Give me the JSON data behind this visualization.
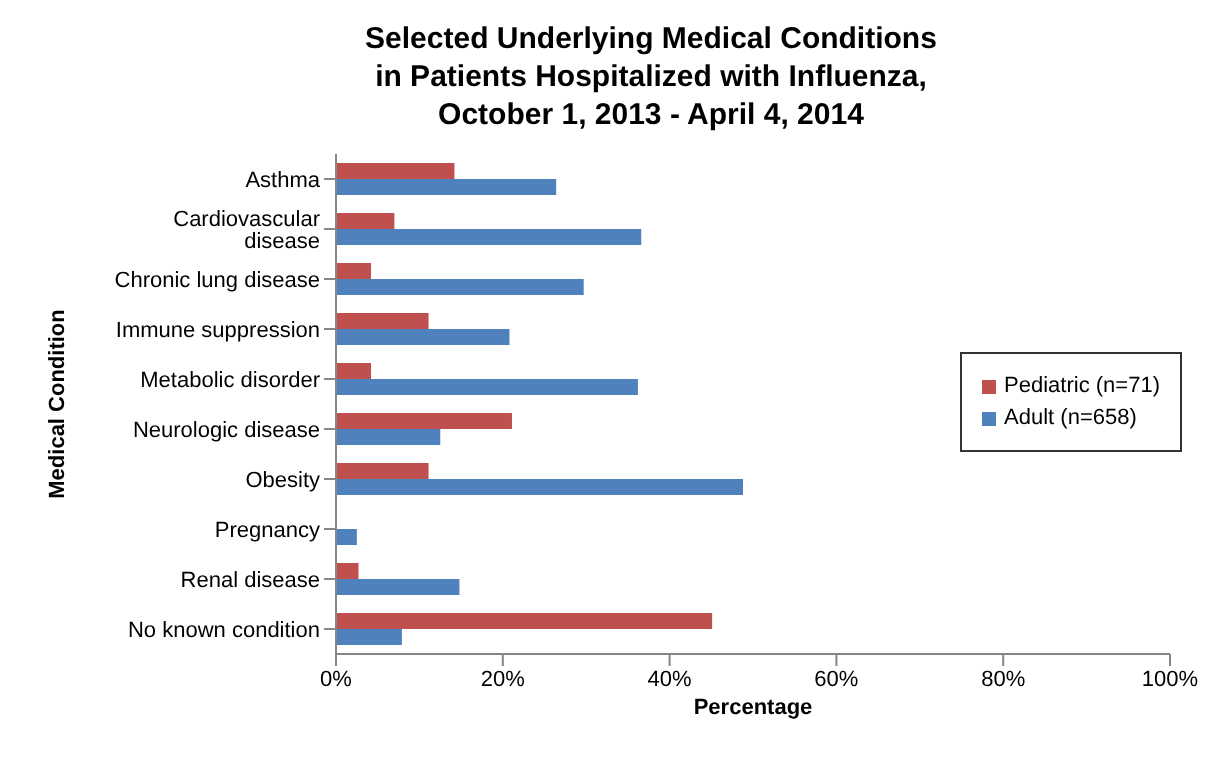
{
  "chart_data": {
    "type": "bar",
    "orientation": "horizontal",
    "title": "Selected Underlying Medical Conditions\nin Patients Hospitalized with Influenza,\nOctober 1, 2013 - April 4, 2014",
    "xlabel": "Percentage",
    "ylabel": "Medical Condition",
    "categories": [
      "Asthma",
      "Cardiovascular disease",
      "Chronic lung disease",
      "Immune suppression",
      "Metabolic disorder",
      "Neurologic disease",
      "Obesity",
      "Pregnancy",
      "Renal disease",
      "No known condition"
    ],
    "series": [
      {
        "name": "Pediatric (n=71)",
        "color": "#c0504d",
        "values": [
          14.2,
          7.0,
          4.2,
          11.1,
          4.2,
          21.1,
          11.1,
          0,
          2.7,
          45.1
        ]
      },
      {
        "name": "Adult (n=658)",
        "color": "#4f81bd",
        "values": [
          26.4,
          36.6,
          29.7,
          20.8,
          36.2,
          12.5,
          48.8,
          2.5,
          14.8,
          7.9
        ]
      }
    ],
    "xlim": [
      0,
      100
    ],
    "xticks": [
      {
        "value": 0,
        "label": "0%"
      },
      {
        "value": 20,
        "label": "20%"
      },
      {
        "value": 40,
        "label": "40%"
      },
      {
        "value": 60,
        "label": "60%"
      },
      {
        "value": 80,
        "label": "80%"
      },
      {
        "value": 100,
        "label": "100%"
      }
    ],
    "grid": false,
    "legend": "right"
  }
}
